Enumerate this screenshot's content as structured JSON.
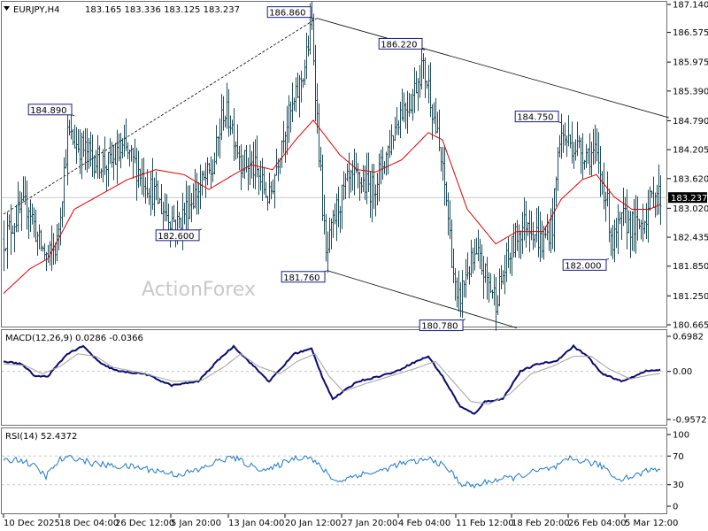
{
  "header": {
    "symbol": "EURJPY,H4",
    "ohlc": "183.165 183.336 183.125 183.237",
    "macd_label": "MACD(12,26,9) 0.0286 -0.0366",
    "rsi_label": "RSI(14) 52.4372",
    "watermark": "ActionForex"
  },
  "colors": {
    "bars": "#1f4e5a",
    "ma": "#e00000",
    "macd": "#0a0a6e",
    "signal": "#a0a0a0",
    "rsi": "#1e78c8",
    "label_border": "#1a1a8c",
    "grid": "#c8c8c8"
  },
  "chart_data": [
    {
      "type": "ohlc",
      "panel": "price",
      "current_price": "183.237",
      "ylim": [
        180.665,
        187.14
      ],
      "y_ticks": [
        "187.140",
        "186.575",
        "185.975",
        "185.390",
        "184.790",
        "184.205",
        "183.620",
        "183.020",
        "182.435",
        "181.850",
        "181.250",
        "180.665"
      ],
      "x_ticks": [
        "10 Dec 2025",
        "18 Dec 04:00",
        "26 Dec 12:00",
        "5 Jan 20:00",
        "13 Jan 04:00",
        "20 Jan 12:00",
        "27 Jan 20:00",
        "4 Feb 04:00",
        "11 Feb 12:00",
        "18 Feb 20:00",
        "26 Feb 04:00",
        "5 Mar 12:00"
      ],
      "close_path": [
        [
          0,
          182.4
        ],
        [
          8,
          182.9
        ],
        [
          14,
          183.1
        ],
        [
          20,
          182.3
        ],
        [
          25,
          182.0
        ],
        [
          30,
          182.3
        ],
        [
          36,
          184.5
        ],
        [
          42,
          184.3
        ],
        [
          52,
          184.0
        ],
        [
          60,
          183.9
        ],
        [
          68,
          184.2
        ],
        [
          80,
          183.6
        ],
        [
          90,
          183.0
        ],
        [
          98,
          182.7
        ],
        [
          106,
          183.2
        ],
        [
          118,
          183.8
        ],
        [
          124,
          185.0
        ],
        [
          128,
          184.8
        ],
        [
          134,
          184.0
        ],
        [
          142,
          183.8
        ],
        [
          150,
          183.2
        ],
        [
          158,
          184.6
        ],
        [
          164,
          185.1
        ],
        [
          170,
          185.9
        ],
        [
          174,
          186.75
        ],
        [
          178,
          184.2
        ],
        [
          182,
          182.0
        ],
        [
          188,
          183.0
        ],
        [
          194,
          183.5
        ],
        [
          200,
          183.6
        ],
        [
          208,
          183.4
        ],
        [
          216,
          184.1
        ],
        [
          224,
          185.0
        ],
        [
          230,
          185.2
        ],
        [
          236,
          185.9
        ],
        [
          240,
          185.5
        ],
        [
          246,
          184.2
        ],
        [
          250,
          183.2
        ],
        [
          256,
          181.0
        ],
        [
          262,
          181.8
        ],
        [
          268,
          182.0
        ],
        [
          274,
          181.5
        ],
        [
          278,
          181.2
        ],
        [
          284,
          181.9
        ],
        [
          290,
          182.5
        ],
        [
          296,
          182.8
        ],
        [
          304,
          182.3
        ],
        [
          310,
          182.7
        ],
        [
          314,
          184.5
        ],
        [
          318,
          184.4
        ],
        [
          326,
          184.2
        ],
        [
          334,
          184.1
        ],
        [
          340,
          183.3
        ],
        [
          344,
          182.3
        ],
        [
          350,
          182.8
        ],
        [
          358,
          182.6
        ],
        [
          364,
          183.0
        ],
        [
          368,
          183.4
        ],
        [
          371,
          183.237
        ]
      ],
      "ma_path": [
        [
          0,
          181.3
        ],
        [
          15,
          181.8
        ],
        [
          25,
          182.0
        ],
        [
          40,
          183.0
        ],
        [
          55,
          183.3
        ],
        [
          70,
          183.6
        ],
        [
          86,
          183.8
        ],
        [
          102,
          183.7
        ],
        [
          116,
          183.4
        ],
        [
          130,
          183.7
        ],
        [
          140,
          183.9
        ],
        [
          152,
          183.8
        ],
        [
          165,
          184.4
        ],
        [
          175,
          184.8
        ],
        [
          190,
          184.1
        ],
        [
          200,
          183.8
        ],
        [
          210,
          183.75
        ],
        [
          225,
          184.0
        ],
        [
          240,
          184.55
        ],
        [
          248,
          184.4
        ],
        [
          262,
          183.0
        ],
        [
          278,
          182.3
        ],
        [
          290,
          182.55
        ],
        [
          305,
          182.55
        ],
        [
          315,
          183.2
        ],
        [
          327,
          183.6
        ],
        [
          335,
          183.7
        ],
        [
          345,
          183.25
        ],
        [
          355,
          183.0
        ],
        [
          365,
          183.0
        ],
        [
          371,
          183.1
        ]
      ],
      "annotations": [
        {
          "label": "184.890",
          "x": 40,
          "price": 184.89,
          "side": "left",
          "pos": "above"
        },
        {
          "label": "182.600",
          "x": 112,
          "price": 182.6,
          "side": "left",
          "pos": "below"
        },
        {
          "label": "186.860",
          "x": 175,
          "price": 186.86,
          "side": "left",
          "pos": "above"
        },
        {
          "label": "181.760",
          "x": 183,
          "price": 181.76,
          "side": "left",
          "pos": "below"
        },
        {
          "label": "186.220",
          "x": 238,
          "price": 186.22,
          "side": "left",
          "pos": "above"
        },
        {
          "label": "180.780",
          "x": 261,
          "price": 180.78,
          "side": "left",
          "pos": "below"
        },
        {
          "label": "184.750",
          "x": 315,
          "price": 184.75,
          "side": "left",
          "pos": "above"
        },
        {
          "label": "182.000",
          "x": 342,
          "price": 182.0,
          "side": "left",
          "pos": "below"
        }
      ],
      "trendlines": [
        {
          "from": [
            0,
            182.9
          ],
          "to": [
            177,
            186.86
          ],
          "style": "dashed"
        },
        {
          "from": [
            177,
            186.86
          ],
          "to": [
            376,
            184.85
          ],
          "style": "solid"
        },
        {
          "from": [
            183,
            181.76
          ],
          "to": [
            290,
            180.6
          ],
          "style": "solid"
        }
      ]
    },
    {
      "type": "line",
      "panel": "macd",
      "ylim": [
        -0.9572,
        0.6982
      ],
      "y_ticks": [
        "0.6982",
        "0.00",
        "-0.9572"
      ],
      "series": [
        {
          "name": "MACD",
          "role": "macd",
          "values": [
            [
              0,
              0.2
            ],
            [
              10,
              0.15
            ],
            [
              18,
              -0.1
            ],
            [
              25,
              -0.1
            ],
            [
              36,
              0.35
            ],
            [
              45,
              0.5
            ],
            [
              55,
              0.15
            ],
            [
              65,
              0.0
            ],
            [
              80,
              -0.05
            ],
            [
              95,
              -0.28
            ],
            [
              110,
              -0.2
            ],
            [
              122,
              0.25
            ],
            [
              130,
              0.5
            ],
            [
              140,
              0.15
            ],
            [
              150,
              -0.2
            ],
            [
              158,
              0.1
            ],
            [
              164,
              0.35
            ],
            [
              174,
              0.45
            ],
            [
              180,
              -0.1
            ],
            [
              186,
              -0.55
            ],
            [
              200,
              -0.2
            ],
            [
              212,
              -0.1
            ],
            [
              222,
              0.0
            ],
            [
              230,
              0.15
            ],
            [
              240,
              0.3
            ],
            [
              248,
              -0.1
            ],
            [
              258,
              -0.7
            ],
            [
              266,
              -0.85
            ],
            [
              272,
              -0.6
            ],
            [
              282,
              -0.55
            ],
            [
              292,
              0.0
            ],
            [
              302,
              0.15
            ],
            [
              312,
              0.2
            ],
            [
              322,
              0.5
            ],
            [
              330,
              0.3
            ],
            [
              338,
              -0.05
            ],
            [
              350,
              -0.2
            ],
            [
              362,
              0.0
            ],
            [
              371,
              0.03
            ]
          ]
        },
        {
          "name": "Signal",
          "role": "signal",
          "values": [
            [
              0,
              0.15
            ],
            [
              12,
              0.12
            ],
            [
              22,
              -0.05
            ],
            [
              32,
              0.1
            ],
            [
              42,
              0.35
            ],
            [
              52,
              0.3
            ],
            [
              62,
              0.08
            ],
            [
              78,
              -0.03
            ],
            [
              96,
              -0.2
            ],
            [
              112,
              -0.18
            ],
            [
              125,
              0.1
            ],
            [
              134,
              0.35
            ],
            [
              144,
              0.1
            ],
            [
              156,
              -0.05
            ],
            [
              166,
              0.2
            ],
            [
              176,
              0.35
            ],
            [
              184,
              -0.1
            ],
            [
              192,
              -0.4
            ],
            [
              204,
              -0.25
            ],
            [
              218,
              -0.1
            ],
            [
              232,
              0.05
            ],
            [
              244,
              0.2
            ],
            [
              254,
              -0.2
            ],
            [
              264,
              -0.6
            ],
            [
              274,
              -0.65
            ],
            [
              286,
              -0.45
            ],
            [
              298,
              -0.05
            ],
            [
              310,
              0.1
            ],
            [
              322,
              0.3
            ],
            [
              332,
              0.3
            ],
            [
              342,
              0.05
            ],
            [
              354,
              -0.15
            ],
            [
              364,
              -0.08
            ],
            [
              371,
              -0.04
            ]
          ]
        }
      ]
    },
    {
      "type": "line",
      "panel": "rsi",
      "ylim": [
        0,
        100
      ],
      "y_ticks": [
        "100",
        "70",
        "30",
        "0"
      ],
      "series": [
        {
          "name": "RSI",
          "role": "rsi",
          "values": [
            [
              0,
              62
            ],
            [
              8,
              66
            ],
            [
              16,
              58
            ],
            [
              24,
              42
            ],
            [
              32,
              65
            ],
            [
              40,
              68
            ],
            [
              50,
              60
            ],
            [
              62,
              56
            ],
            [
              74,
              55
            ],
            [
              86,
              50
            ],
            [
              98,
              44
            ],
            [
              110,
              50
            ],
            [
              122,
              64
            ],
            [
              130,
              68
            ],
            [
              140,
              56
            ],
            [
              150,
              50
            ],
            [
              162,
              66
            ],
            [
              172,
              70
            ],
            [
              182,
              48
            ],
            [
              188,
              34
            ],
            [
              200,
              44
            ],
            [
              212,
              48
            ],
            [
              222,
              58
            ],
            [
              232,
              62
            ],
            [
              242,
              66
            ],
            [
              252,
              50
            ],
            [
              258,
              32
            ],
            [
              266,
              28
            ],
            [
              276,
              36
            ],
            [
              288,
              40
            ],
            [
              300,
              48
            ],
            [
              312,
              54
            ],
            [
              320,
              66
            ],
            [
              330,
              62
            ],
            [
              340,
              54
            ],
            [
              346,
              38
            ],
            [
              356,
              42
            ],
            [
              366,
              52
            ],
            [
              371,
              52.4
            ]
          ]
        }
      ]
    }
  ]
}
